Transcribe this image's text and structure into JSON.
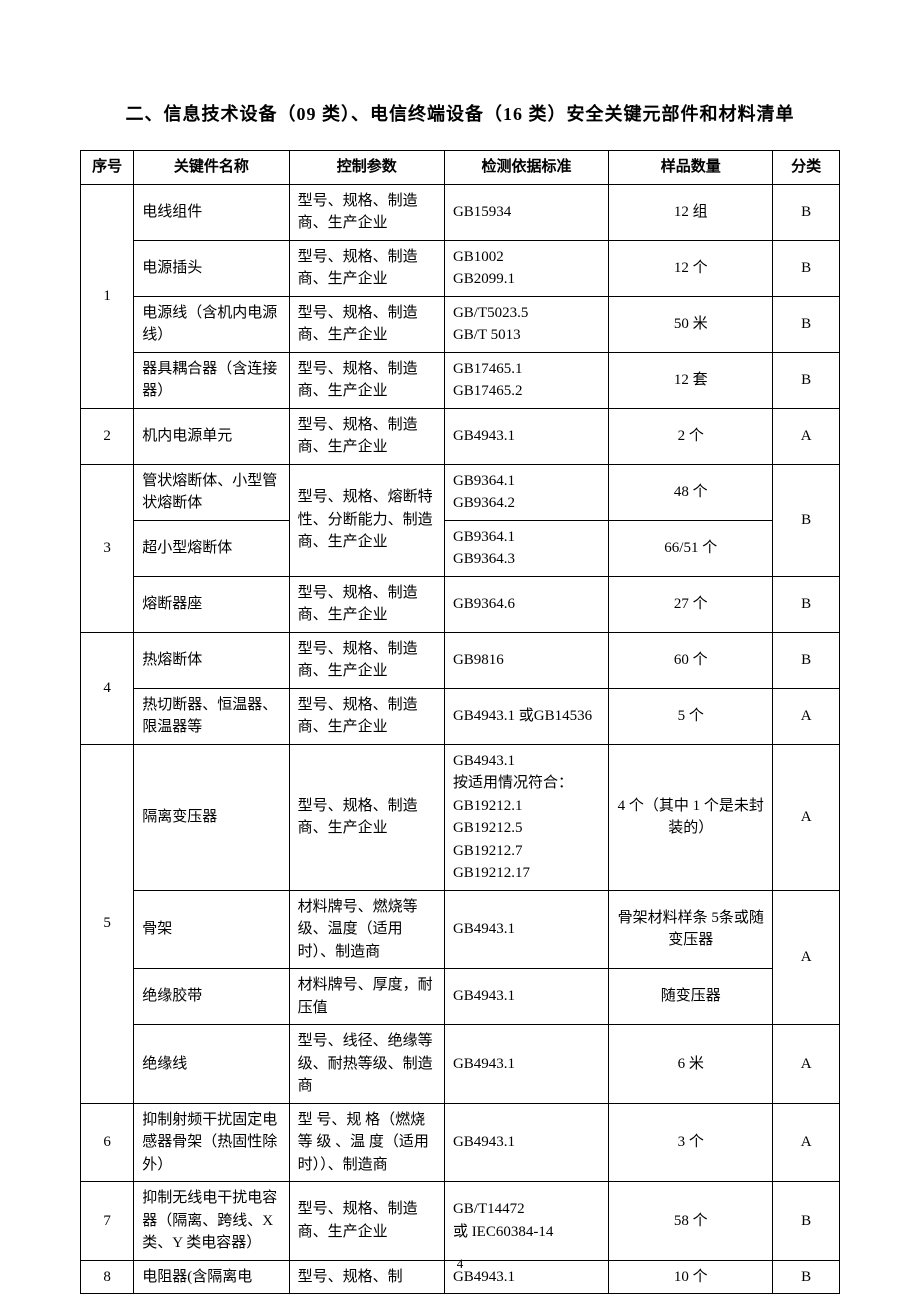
{
  "title": "二、信息技术设备（09 类）、电信终端设备（16 类）安全关键元部件和材料清单",
  "page_number": "4",
  "columns": {
    "num": "序号",
    "part": "关键件名称",
    "ctrl": "控制参数",
    "std": "检测依据标准",
    "qty": "样品数量",
    "cls": "分类"
  },
  "r1a": {
    "part": "电线组件",
    "ctrl": "型号、规格、制造商、生产企业",
    "std": "GB15934",
    "qty": "12 组",
    "cls": "B"
  },
  "r1b": {
    "part": "电源插头",
    "ctrl": "型号、规格、制造商、生产企业",
    "std": "GB1002\nGB2099.1",
    "qty": "12 个",
    "cls": "B"
  },
  "r1c": {
    "part": "电源线（含机内电源线）",
    "ctrl": "型号、规格、制造商、生产企业",
    "std": "GB/T5023.5\nGB/T 5013",
    "qty": "50 米",
    "cls": "B"
  },
  "r1d": {
    "part": "器具耦合器（含连接器）",
    "ctrl": "型号、规格、制造商、生产企业",
    "std": "GB17465.1\nGB17465.2",
    "qty": "12 套",
    "cls": "B"
  },
  "r2": {
    "part": "机内电源单元",
    "ctrl": "型号、规格、制造商、生产企业",
    "std": "GB4943.1",
    "qty": "2 个",
    "cls": "A"
  },
  "r3a": {
    "part": "管状熔断体、小型管状熔断体",
    "ctrl": "型号、规格、熔断特性、分断能力、制造商、生产企业",
    "std": "GB9364.1\nGB9364.2",
    "qty": "48 个",
    "cls": "B"
  },
  "r3b": {
    "part": "超小型熔断体",
    "std": "GB9364.1\nGB9364.3",
    "qty": "66/51 个"
  },
  "r3c": {
    "part": "熔断器座",
    "ctrl": "型号、规格、制造商、生产企业",
    "std": "GB9364.6",
    "qty": "27 个",
    "cls": "B"
  },
  "r4a": {
    "part": "热熔断体",
    "ctrl": "型号、规格、制造商、生产企业",
    "std": "GB9816",
    "qty": "60 个",
    "cls": "B"
  },
  "r4b": {
    "part": "热切断器、恒温器、限温器等",
    "ctrl": "型号、规格、制造商、生产企业",
    "std": "GB4943.1 或GB14536",
    "qty": "5 个",
    "cls": "A"
  },
  "r5a": {
    "part": "隔离变压器",
    "ctrl": "型号、规格、制造商、生产企业",
    "std": "GB4943.1\n按适用情况符合：\nGB19212.1\nGB19212.5\nGB19212.7\nGB19212.17",
    "qty": "4 个（其中 1 个是未封装的）",
    "cls": "A"
  },
  "r5b": {
    "part": "骨架",
    "ctrl": "材料牌号、燃烧等级、温度（适用时）、制造商",
    "std": "GB4943.1",
    "qty": "骨架材料样条 5条或随变压器",
    "cls": "A"
  },
  "r5c": {
    "part": "绝缘胶带",
    "ctrl": "材料牌号、厚度，耐压值",
    "std": "GB4943.1",
    "qty": "随变压器"
  },
  "r5d": {
    "part": "绝缘线",
    "ctrl": "型号、线径、绝缘等级、耐热等级、制造商",
    "std": "GB4943.1",
    "qty": "6 米",
    "cls": "A"
  },
  "r6": {
    "part": "抑制射频干扰固定电感器骨架（热固性除外）",
    "ctrl": "型 号、规 格（燃烧 等 级 、温 度（适用时））、制造商",
    "std": "GB4943.1",
    "qty": "3 个",
    "cls": "A"
  },
  "r7": {
    "part": "抑制无线电干扰电容器（隔离、跨线、X 类、Y 类电容器）",
    "ctrl": "型号、规格、制造商、生产企业",
    "std": "GB/T14472\n或 IEC60384-14",
    "qty": "58 个",
    "cls": "B"
  },
  "r8": {
    "part": "电阻器(含隔离电",
    "ctrl": "型号、规格、制",
    "std": "GB4943.1",
    "qty": "10 个",
    "cls": "B"
  },
  "seq": {
    "s1": "1",
    "s2": "2",
    "s3": "3",
    "s4": "4",
    "s5": "5",
    "s6": "6",
    "s7": "7",
    "s8": "8"
  }
}
